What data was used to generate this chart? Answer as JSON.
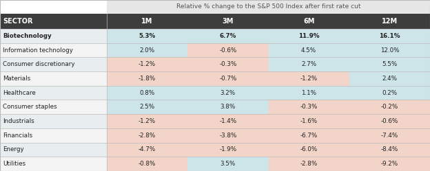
{
  "title": "Relative % change to the S&P 500 Index after first rate cut",
  "columns": [
    "SECTOR",
    "1M",
    "3M",
    "6M",
    "12M"
  ],
  "rows": [
    [
      "Biotechnology",
      "5.3%",
      "6.7%",
      "11.9%",
      "16.1%"
    ],
    [
      "Information technology",
      "2.0%",
      "-0.6%",
      "4.5%",
      "12.0%"
    ],
    [
      "Consumer discretionary",
      "-1.2%",
      "-0.3%",
      "2.7%",
      "5.5%"
    ],
    [
      "Materials",
      "-1.8%",
      "-0.7%",
      "-1.2%",
      "2.4%"
    ],
    [
      "Healthcare",
      "0.8%",
      "3.2%",
      "1.1%",
      "0.2%"
    ],
    [
      "Consumer staples",
      "2.5%",
      "3.8%",
      "-0.3%",
      "-0.2%"
    ],
    [
      "Industrials",
      "-1.2%",
      "-1.4%",
      "-1.6%",
      "-0.6%"
    ],
    [
      "Financials",
      "-2.8%",
      "-3.8%",
      "-6.7%",
      "-7.4%"
    ],
    [
      "Energy",
      "-4.7%",
      "-1.9%",
      "-6.0%",
      "-8.4%"
    ],
    [
      "Utilities",
      "-0.8%",
      "3.5%",
      "-2.8%",
      "-9.2%"
    ]
  ],
  "values": [
    [
      5.3,
      6.7,
      11.9,
      16.1
    ],
    [
      2.0,
      -0.6,
      4.5,
      12.0
    ],
    [
      -1.2,
      -0.3,
      2.7,
      5.5
    ],
    [
      -1.8,
      -0.7,
      -1.2,
      2.4
    ],
    [
      0.8,
      3.2,
      1.1,
      0.2
    ],
    [
      2.5,
      3.8,
      -0.3,
      -0.2
    ],
    [
      -1.2,
      -1.4,
      -1.6,
      -0.6
    ],
    [
      -2.8,
      -3.8,
      -6.7,
      -7.4
    ],
    [
      -4.7,
      -1.9,
      -6.0,
      -8.4
    ],
    [
      -0.8,
      3.5,
      -2.8,
      -9.2
    ]
  ],
  "row_bold": [
    true,
    false,
    false,
    false,
    false,
    false,
    false,
    false,
    false,
    false
  ],
  "positive_color": "#cde5e9",
  "negative_color": "#f2d5c8",
  "header_bg": "#3d3d3d",
  "header_text": "#ffffff",
  "title_bg": "#e6e6e6",
  "title_text": "#555555",
  "sector_bg": "#e8eef0",
  "sector_bg_alt": "#f4f4f4",
  "border_color": "#bbbbbb",
  "fig_width": 6.24,
  "fig_height": 2.49,
  "dpi": 100
}
